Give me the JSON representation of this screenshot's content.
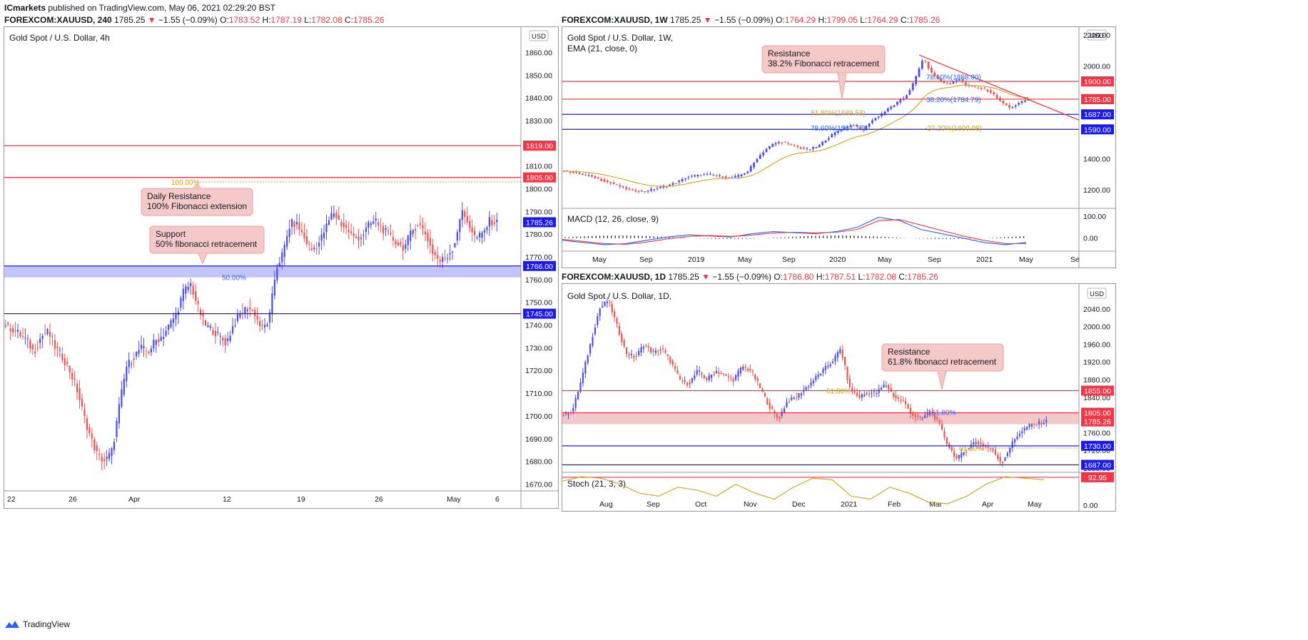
{
  "header": {
    "brand": "ICmarkets",
    "published": "published on TradingView.com, May 06, 2021 02:29:20 BST"
  },
  "footer": {
    "logo_text": "TradingView"
  },
  "colors": {
    "up": "#4a4de8",
    "down": "#ef5350",
    "red_line": "#f23645",
    "blue_line": "#1e1ed8",
    "fib": "#d4a017",
    "note_bg": "#f6c9c9",
    "note_border": "#e8a0a0"
  },
  "charts": [
    {
      "id": "c4h",
      "symbol": "FOREXCOM:XAUUSD, 240",
      "last": "1785.25",
      "arrow": "▼",
      "change": "−1.55 (−0.09%)",
      "ohlc": {
        "o": "1783.52",
        "h": "1787.19",
        "l": "1782.08",
        "c": "1785.26"
      },
      "title": "Gold Spot / U.S. Dollar, 4h",
      "currency": "USD",
      "notes": [
        {
          "line1": "Daily Resistance",
          "line2": "100% Fibonacci extension"
        },
        {
          "line1": "Support",
          "line2": "50% fibonacci retracement"
        }
      ],
      "fib_labels": [
        "100.00%",
        "50.00%"
      ]
    },
    {
      "id": "c1w",
      "symbol": "FOREXCOM:XAUUSD, 1W",
      "last": "1785.25",
      "arrow": "▼",
      "change": "−1.55 (−0.09%)",
      "ohlc": {
        "o": "1764.29",
        "h": "1799.05",
        "l": "1764.29",
        "c": "1785.26"
      },
      "title": "Gold Spot / U.S. Dollar, 1W,",
      "indicator": "EMA (21, close, 0)",
      "currency": "USD",
      "sub_title": "MACD (12, 26, close, 9)",
      "notes": [
        {
          "line1": "Resistance",
          "line2": "38.2% Fibonacci retracement"
        }
      ],
      "fib_labels": [
        "78.60%(1888.90)",
        "38.20%(1784.79)",
        "61.80%(1689.58)",
        "78.60%(1584.77)",
        "-27.20%(1600.08)"
      ]
    },
    {
      "id": "c1d",
      "symbol": "FOREXCOM:XAUUSD, 1D",
      "last": "1785.25",
      "arrow": "▼",
      "change": "−1.55 (−0.09%)",
      "ohlc": {
        "o": "1786.80",
        "h": "1787.51",
        "l": "1782.08",
        "c": "1785.26"
      },
      "title": "Gold Spot / U.S. Dollar, 1D,",
      "currency": "USD",
      "sub_title": "Stoch (21, 3, 3)",
      "notes": [
        {
          "line1": "Resistance",
          "line2": "61.8% fibonacci retracement"
        }
      ],
      "fib_labels": [
        "61.80%",
        "161.80%",
        "61.80%"
      ]
    }
  ],
  "chart_data": [
    {
      "type": "candlestick",
      "title": "Gold Spot / U.S. Dollar, 4h",
      "x_ticks": [
        "22",
        "26",
        "Apr",
        "12",
        "19",
        "26",
        "May",
        "6"
      ],
      "y_ticks": [
        1860,
        1850,
        1840,
        1830,
        1820,
        1810,
        1800,
        1790,
        1780,
        1770,
        1760,
        1750,
        1740,
        1730,
        1720,
        1710,
        1700,
        1690,
        1680,
        1670
      ],
      "ylim": [
        1667,
        1868
      ],
      "levels": [
        {
          "label": "1819.00",
          "value": 1819,
          "color": "red"
        },
        {
          "label": "1805.00",
          "value": 1805,
          "color": "red"
        },
        {
          "label": "1785.26",
          "value": 1785.26,
          "color": "blue"
        },
        {
          "label": "1766.00",
          "value": 1766,
          "color": "blue"
        },
        {
          "label": "1745.00",
          "value": 1745,
          "color": "blue"
        }
      ],
      "zone": [
        1761,
        1766
      ],
      "path": [
        1740,
        1738,
        1736,
        1733,
        1728,
        1735,
        1737,
        1730,
        1726,
        1720,
        1712,
        1700,
        1690,
        1682,
        1680,
        1685,
        1705,
        1722,
        1726,
        1730,
        1728,
        1733,
        1735,
        1740,
        1745,
        1755,
        1758,
        1748,
        1740,
        1738,
        1735,
        1732,
        1740,
        1745,
        1748,
        1745,
        1738,
        1742,
        1765,
        1772,
        1785,
        1784,
        1778,
        1773,
        1776,
        1783,
        1790,
        1785,
        1782,
        1778,
        1779,
        1784,
        1786,
        1782,
        1779,
        1776,
        1774,
        1781,
        1785,
        1780,
        1772,
        1768,
        1770,
        1775,
        1790,
        1785,
        1778,
        1780,
        1786,
        1785
      ]
    },
    {
      "type": "candlestick",
      "title": "Gold Spot / U.S. Dollar, 1W",
      "x_ticks": [
        "May",
        "Sep",
        "2019",
        "May",
        "Sep",
        "2020",
        "May",
        "Sep",
        "2021",
        "May",
        "Se"
      ],
      "y_ticks": [
        2200,
        2000,
        1800,
        1600,
        1400,
        1200
      ],
      "ylim": [
        1080,
        2250
      ],
      "levels": [
        {
          "label": "1900.00",
          "value": 1900,
          "color": "red"
        },
        {
          "label": "1785.26",
          "value": 1785.26,
          "color": "blue"
        },
        {
          "label": "1785.00",
          "value": 1785,
          "color": "red"
        },
        {
          "label": "1687.00",
          "value": 1687,
          "color": "blue"
        },
        {
          "label": "1590.00",
          "value": 1590,
          "color": "blue"
        }
      ],
      "path": [
        1320,
        1315,
        1300,
        1290,
        1270,
        1250,
        1230,
        1210,
        1195,
        1190,
        1200,
        1215,
        1230,
        1250,
        1280,
        1290,
        1300,
        1295,
        1285,
        1275,
        1290,
        1320,
        1400,
        1460,
        1500,
        1510,
        1490,
        1470,
        1460,
        1480,
        1530,
        1570,
        1600,
        1620,
        1580,
        1640,
        1680,
        1720,
        1760,
        1800,
        1900,
        2050,
        1950,
        1900,
        1880,
        1920,
        1870,
        1860,
        1850,
        1820,
        1760,
        1730,
        1760,
        1785
      ],
      "ema_label": "EMA (21, close, 0)"
    },
    {
      "type": "line",
      "title": "MACD (12, 26, close, 9)",
      "y_ticks": [
        100,
        0
      ],
      "series": [
        {
          "values": [
            -10,
            -20,
            -30,
            -25,
            -10,
            5,
            15,
            10,
            5,
            20,
            30,
            25,
            20,
            30,
            50,
            95,
            80,
            40,
            20,
            0,
            -20,
            -30,
            -20
          ]
        },
        {
          "values": [
            -5,
            -15,
            -25,
            -28,
            -18,
            -3,
            8,
            12,
            8,
            14,
            24,
            27,
            24,
            27,
            40,
            80,
            85,
            60,
            35,
            10,
            -10,
            -25,
            -25
          ]
        }
      ]
    },
    {
      "type": "candlestick",
      "title": "Gold Spot / U.S. Dollar, 1D",
      "x_ticks": [
        "Aug",
        "Sep",
        "Oct",
        "Nov",
        "Dec",
        "2021",
        "Feb",
        "Mar",
        "Apr",
        "May"
      ],
      "y_ticks": [
        2080,
        2040,
        2000,
        1960,
        1920,
        1880,
        1840,
        1800,
        1760,
        1720,
        1680
      ],
      "ylim": [
        1670,
        2090
      ],
      "levels": [
        {
          "label": "1855.00",
          "value": 1855,
          "color": "red"
        },
        {
          "label": "1805.00",
          "value": 1805,
          "color": "red"
        },
        {
          "label": "1785.26",
          "value": 1785.26,
          "color": "red"
        },
        {
          "label": "1730.00",
          "value": 1730,
          "color": "blue"
        },
        {
          "label": "1687.00",
          "value": 1687,
          "color": "blue"
        }
      ],
      "zone": [
        1779,
        1805
      ],
      "path": [
        1800,
        1810,
        1880,
        1960,
        2040,
        2060,
        2000,
        1940,
        1930,
        1960,
        1940,
        1950,
        1920,
        1880,
        1870,
        1900,
        1880,
        1900,
        1890,
        1880,
        1910,
        1900,
        1860,
        1820,
        1790,
        1830,
        1840,
        1860,
        1880,
        1900,
        1920,
        1950,
        1860,
        1840,
        1850,
        1850,
        1870,
        1840,
        1830,
        1800,
        1790,
        1810,
        1780,
        1730,
        1700,
        1720,
        1740,
        1730,
        1720,
        1690,
        1730,
        1760,
        1775,
        1780,
        1785
      ]
    },
    {
      "type": "line",
      "title": "Stoch (21, 3, 3)",
      "y_ticks": [
        92.95,
        0
      ],
      "series": [
        {
          "values": [
            80,
            95,
            90,
            70,
            40,
            30,
            60,
            50,
            30,
            70,
            40,
            20,
            60,
            90,
            85,
            30,
            20,
            60,
            40,
            10,
            5,
            30,
            70,
            95,
            90,
            85
          ]
        }
      ]
    }
  ]
}
